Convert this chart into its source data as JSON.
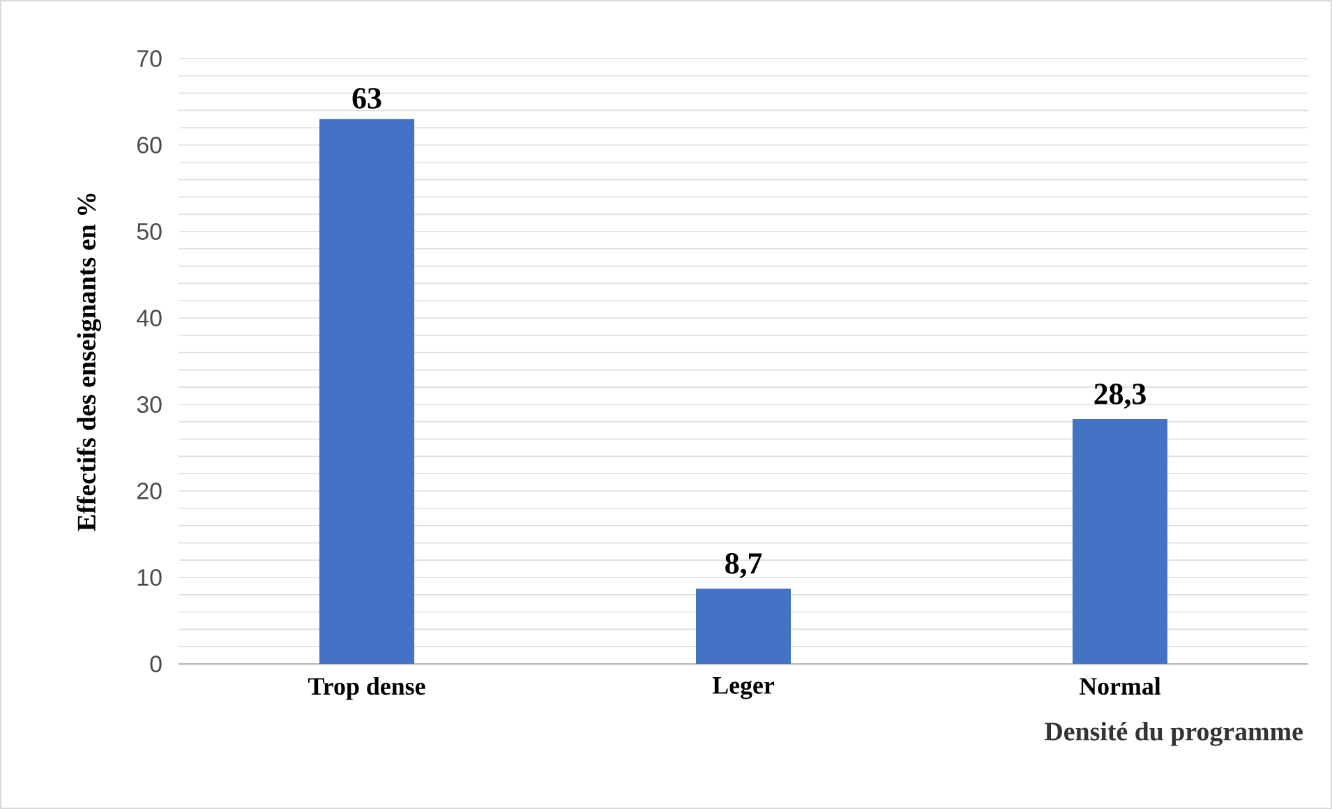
{
  "chart_data": {
    "type": "bar",
    "xlabel": "Densité du programme",
    "ylabel": "Effectifs des enseignants en %",
    "categories": [
      "Trop dense",
      "Leger",
      "Normal"
    ],
    "values": [
      63,
      8.7,
      28.3
    ],
    "value_labels": [
      "63",
      "8,7",
      "28,3"
    ],
    "color": "#4472c4",
    "ylim": [
      0,
      70
    ],
    "yticks": [
      0,
      {
        "value": 2,
        "label": null
      },
      {
        "value": 4,
        "label": null
      },
      {
        "value": 6,
        "label": null
      },
      {
        "value": 8,
        "label": null
      },
      10,
      {
        "value": 12,
        "label": null
      },
      {
        "value": 14,
        "label": null
      },
      {
        "value": 16,
        "label": null
      },
      {
        "value": 18,
        "label": null
      },
      20,
      {
        "value": 22,
        "label": null
      },
      {
        "value": 24,
        "label": null
      },
      {
        "value": 26,
        "label": null
      },
      {
        "value": 28,
        "label": null
      },
      30,
      {
        "value": 32,
        "label": null
      },
      {
        "value": 34,
        "label": null
      },
      {
        "value": 36,
        "label": null
      },
      {
        "value": 38,
        "label": null
      },
      40,
      {
        "value": 42,
        "label": null
      },
      {
        "value": 44,
        "label": null
      },
      {
        "value": 46,
        "label": null
      },
      {
        "value": 48,
        "label": null
      },
      50,
      {
        "value": 52,
        "label": null
      },
      {
        "value": 54,
        "label": null
      },
      {
        "value": 56,
        "label": null
      },
      {
        "value": 58,
        "label": null
      },
      60,
      {
        "value": 62,
        "label": null
      },
      {
        "value": 64,
        "label": null
      },
      {
        "value": 66,
        "label": null
      },
      {
        "value": 68,
        "label": null
      },
      70
    ],
    "grid": "y"
  }
}
